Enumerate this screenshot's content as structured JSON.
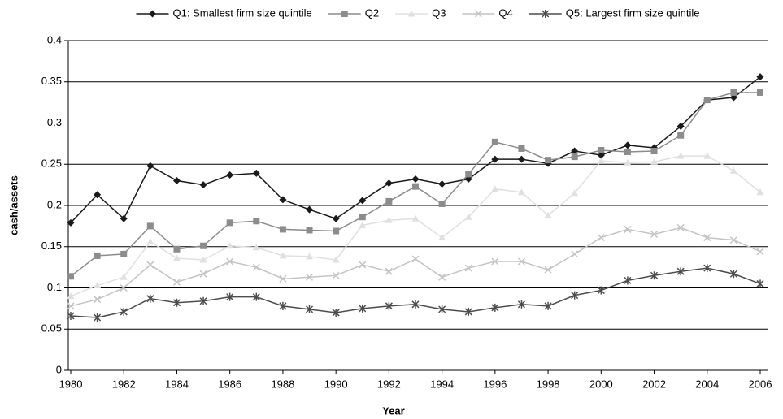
{
  "chart_data": {
    "type": "line",
    "x_label": "Year",
    "y_label": "cash/assets",
    "x": [
      1980,
      1981,
      1982,
      1983,
      1984,
      1985,
      1986,
      1987,
      1988,
      1989,
      1990,
      1991,
      1992,
      1993,
      1994,
      1995,
      1996,
      1997,
      1998,
      1999,
      2000,
      2001,
      2002,
      2003,
      2004,
      2005,
      2006
    ],
    "series": [
      {
        "name": "Q1: Smallest firm size quintile",
        "color": "#1a1a1a",
        "marker": "diamond",
        "values": [
          0.179,
          0.213,
          0.184,
          0.248,
          0.23,
          0.225,
          0.237,
          0.239,
          0.207,
          0.195,
          0.184,
          0.206,
          0.227,
          0.232,
          0.226,
          0.232,
          0.256,
          0.256,
          0.251,
          0.266,
          0.261,
          0.273,
          0.27,
          0.296,
          0.328,
          0.331,
          0.356
        ]
      },
      {
        "name": "Q2",
        "color": "#8c8c8c",
        "marker": "square",
        "values": [
          0.114,
          0.139,
          0.141,
          0.175,
          0.147,
          0.151,
          0.179,
          0.181,
          0.171,
          0.17,
          0.169,
          0.186,
          0.205,
          0.223,
          0.202,
          0.238,
          0.277,
          0.269,
          0.255,
          0.259,
          0.267,
          0.265,
          0.266,
          0.285,
          0.328,
          0.337,
          0.337
        ]
      },
      {
        "name": "Q3",
        "color": "#e0e0e0",
        "marker": "triangle",
        "values": [
          0.09,
          0.103,
          0.113,
          0.156,
          0.136,
          0.134,
          0.151,
          0.149,
          0.139,
          0.138,
          0.134,
          0.176,
          0.182,
          0.184,
          0.161,
          0.186,
          0.22,
          0.216,
          0.188,
          0.215,
          0.254,
          0.252,
          0.253,
          0.26,
          0.26,
          0.242,
          0.216
        ]
      },
      {
        "name": "Q4",
        "color": "#c4c4c4",
        "marker": "x",
        "values": [
          0.078,
          0.086,
          0.1,
          0.128,
          0.107,
          0.117,
          0.132,
          0.125,
          0.111,
          0.113,
          0.115,
          0.128,
          0.12,
          0.135,
          0.113,
          0.124,
          0.132,
          0.132,
          0.122,
          0.141,
          0.161,
          0.171,
          0.165,
          0.173,
          0.161,
          0.158,
          0.144
        ]
      },
      {
        "name": "Q5: Largest firm size quintile",
        "color": "#4d4d4d",
        "marker": "star",
        "values": [
          0.066,
          0.064,
          0.071,
          0.087,
          0.082,
          0.084,
          0.089,
          0.089,
          0.078,
          0.074,
          0.07,
          0.075,
          0.078,
          0.08,
          0.074,
          0.071,
          0.076,
          0.08,
          0.078,
          0.091,
          0.097,
          0.109,
          0.115,
          0.12,
          0.124,
          0.117,
          0.105
        ]
      }
    ],
    "xlim": [
      1980,
      2006
    ],
    "xticks": [
      1980,
      1982,
      1984,
      1986,
      1988,
      1990,
      1992,
      1994,
      1996,
      1998,
      2000,
      2002,
      2004,
      2006
    ],
    "ylim": [
      0,
      0.4
    ],
    "yticks": [
      0,
      0.05,
      0.1,
      0.15,
      0.2,
      0.25,
      0.3,
      0.35,
      0.4
    ],
    "grid": true,
    "legend": "top"
  }
}
